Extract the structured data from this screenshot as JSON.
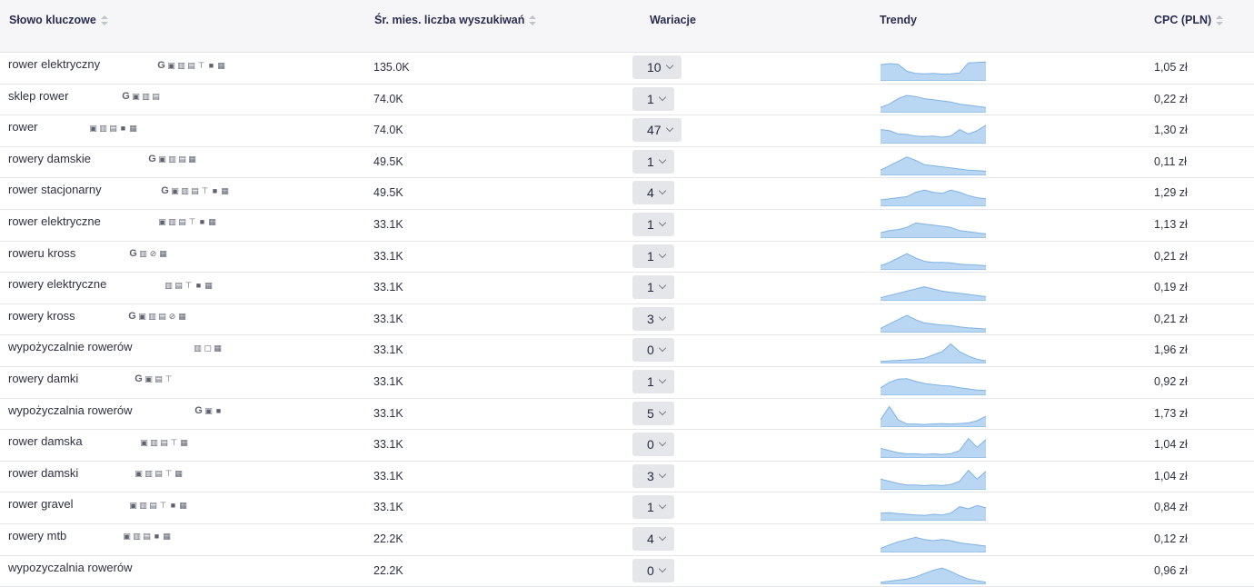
{
  "header": {
    "keyword": "Słowo kluczowe",
    "volume": "Śr. mies. liczba wyszukiwań",
    "variations": "Wariacje",
    "trends": "Trendy",
    "cpc": "CPC (PLN)"
  },
  "rows": [
    {
      "keyword": "rower elektryczny",
      "serp": [
        "google-icon",
        "image-icon",
        "map-icon",
        "shop-icon",
        "carousel-icon",
        "video-icon",
        "news-icon"
      ],
      "volume": "135.0K",
      "variations": "10",
      "cpc": "1,05 zł",
      "trend": [
        0.7,
        0.75,
        0.72,
        0.4,
        0.3,
        0.28,
        0.3,
        0.27,
        0.28,
        0.32,
        0.78,
        0.8,
        0.82
      ]
    },
    {
      "keyword": "sklep rower",
      "serp": [
        "google-icon",
        "image-icon",
        "map-icon",
        "shop-icon"
      ],
      "volume": "74.0K",
      "variations": "1",
      "cpc": "0,22 zł",
      "trend": [
        0.2,
        0.35,
        0.6,
        0.75,
        0.7,
        0.6,
        0.55,
        0.5,
        0.45,
        0.35,
        0.3,
        0.25,
        0.2
      ]
    },
    {
      "keyword": "rower",
      "serp": [
        "image-icon",
        "map-icon",
        "shop-icon",
        "video-icon",
        "news-icon"
      ],
      "volume": "74.0K",
      "variations": "47",
      "cpc": "1,30 zł",
      "trend": [
        0.6,
        0.55,
        0.4,
        0.38,
        0.3,
        0.28,
        0.3,
        0.25,
        0.3,
        0.6,
        0.4,
        0.55,
        0.8
      ]
    },
    {
      "keyword": "rowery damskie",
      "serp": [
        "google-icon",
        "image-icon",
        "map-icon",
        "shop-icon",
        "news-icon"
      ],
      "volume": "49.5K",
      "variations": "1",
      "cpc": "0,11 zł",
      "trend": [
        0.2,
        0.4,
        0.6,
        0.8,
        0.65,
        0.45,
        0.4,
        0.35,
        0.3,
        0.25,
        0.2,
        0.18,
        0.15
      ]
    },
    {
      "keyword": "rower stacjonarny",
      "serp": [
        "google-icon",
        "image-icon",
        "map-icon",
        "shop-icon",
        "carousel-icon",
        "video-icon",
        "news-icon"
      ],
      "volume": "49.5K",
      "variations": "4",
      "cpc": "1,29 zł",
      "trend": [
        0.25,
        0.3,
        0.35,
        0.4,
        0.6,
        0.7,
        0.6,
        0.55,
        0.7,
        0.6,
        0.45,
        0.35,
        0.3
      ]
    },
    {
      "keyword": "rower elektryczne",
      "serp": [
        "image-icon",
        "map-icon",
        "shop-icon",
        "carousel-icon",
        "video-icon",
        "news-icon"
      ],
      "volume": "33.1K",
      "variations": "1",
      "cpc": "1,13 zł",
      "trend": [
        0.2,
        0.3,
        0.35,
        0.45,
        0.65,
        0.6,
        0.55,
        0.5,
        0.45,
        0.3,
        0.25,
        0.2,
        0.15
      ]
    },
    {
      "keyword": "roweru kross",
      "serp": [
        "google-icon",
        "map-icon",
        "link-icon",
        "news-icon"
      ],
      "volume": "33.1K",
      "variations": "1",
      "cpc": "0,21 zł",
      "trend": [
        0.15,
        0.3,
        0.5,
        0.7,
        0.5,
        0.35,
        0.3,
        0.3,
        0.28,
        0.22,
        0.2,
        0.18,
        0.15
      ]
    },
    {
      "keyword": "rowery elektryczne",
      "serp": [
        "map-icon",
        "shop-icon",
        "carousel-icon",
        "video-icon",
        "news-icon"
      ],
      "volume": "33.1K",
      "variations": "1",
      "cpc": "0,19 zł",
      "trend": [
        0.1,
        0.2,
        0.3,
        0.4,
        0.5,
        0.6,
        0.5,
        0.4,
        0.35,
        0.3,
        0.25,
        0.2,
        0.15
      ]
    },
    {
      "keyword": "rowery kross",
      "serp": [
        "google-icon",
        "image-icon",
        "map-icon",
        "shop-icon",
        "link-icon",
        "news-icon"
      ],
      "volume": "33.1K",
      "variations": "3",
      "cpc": "0,21 zł",
      "trend": [
        0.15,
        0.35,
        0.55,
        0.75,
        0.55,
        0.4,
        0.35,
        0.3,
        0.28,
        0.22,
        0.18,
        0.15,
        0.12
      ]
    },
    {
      "keyword": "wypożyczalnie rowerów",
      "serp": [
        "map-icon",
        "chat-icon",
        "news-icon"
      ],
      "volume": "33.1K",
      "variations": "0",
      "cpc": "1,96 zł",
      "trend": [
        0.05,
        0.08,
        0.1,
        0.12,
        0.15,
        0.2,
        0.35,
        0.5,
        0.85,
        0.5,
        0.3,
        0.15,
        0.08
      ]
    },
    {
      "keyword": "rowery damki",
      "serp": [
        "google-icon",
        "image-icon",
        "shop-icon",
        "carousel-icon"
      ],
      "volume": "33.1K",
      "variations": "1",
      "cpc": "0,92 zł",
      "trend": [
        0.3,
        0.55,
        0.7,
        0.72,
        0.6,
        0.5,
        0.45,
        0.4,
        0.38,
        0.3,
        0.25,
        0.2,
        0.18
      ]
    },
    {
      "keyword": "wypożyczalnia rowerów",
      "serp": [
        "google-icon",
        "image-icon",
        "video-icon"
      ],
      "volume": "33.1K",
      "variations": "5",
      "cpc": "1,73 zł",
      "trend": [
        0.3,
        0.9,
        0.3,
        0.1,
        0.1,
        0.08,
        0.1,
        0.12,
        0.1,
        0.12,
        0.15,
        0.25,
        0.45
      ]
    },
    {
      "keyword": "rower damska",
      "serp": [
        "image-icon",
        "map-icon",
        "shop-icon",
        "carousel-icon",
        "news-icon"
      ],
      "volume": "33.1K",
      "variations": "0",
      "cpc": "1,04 zł",
      "trend": [
        0.4,
        0.3,
        0.2,
        0.15,
        0.15,
        0.12,
        0.15,
        0.12,
        0.15,
        0.3,
        0.85,
        0.45,
        0.8
      ]
    },
    {
      "keyword": "rower damski",
      "serp": [
        "image-icon",
        "map-icon",
        "shop-icon",
        "carousel-icon",
        "news-icon"
      ],
      "volume": "33.1K",
      "variations": "3",
      "cpc": "1,04 zł",
      "trend": [
        0.45,
        0.35,
        0.25,
        0.18,
        0.18,
        0.15,
        0.18,
        0.15,
        0.2,
        0.35,
        0.85,
        0.45,
        0.8
      ]
    },
    {
      "keyword": "rower gravel",
      "serp": [
        "image-icon",
        "map-icon",
        "shop-icon",
        "carousel-icon",
        "video-icon",
        "news-icon"
      ],
      "volume": "33.1K",
      "variations": "1",
      "cpc": "0,84 zł",
      "trend": [
        0.3,
        0.32,
        0.28,
        0.25,
        0.22,
        0.2,
        0.25,
        0.22,
        0.3,
        0.6,
        0.5,
        0.65,
        0.55
      ]
    },
    {
      "keyword": "rowery mtb",
      "serp": [
        "image-icon",
        "map-icon",
        "shop-icon",
        "video-icon",
        "news-icon"
      ],
      "volume": "22.2K",
      "variations": "4",
      "cpc": "0,12 zł",
      "trend": [
        0.15,
        0.3,
        0.45,
        0.55,
        0.65,
        0.55,
        0.5,
        0.55,
        0.5,
        0.4,
        0.35,
        0.3,
        0.25
      ]
    },
    {
      "keyword": "wypozyczalnia rowerów",
      "serp": [],
      "volume": "22.2K",
      "variations": "0",
      "cpc": "0,96 zł",
      "trend": [
        0.05,
        0.1,
        0.15,
        0.2,
        0.3,
        0.45,
        0.6,
        0.7,
        0.55,
        0.35,
        0.2,
        0.12,
        0.05
      ]
    }
  ]
}
